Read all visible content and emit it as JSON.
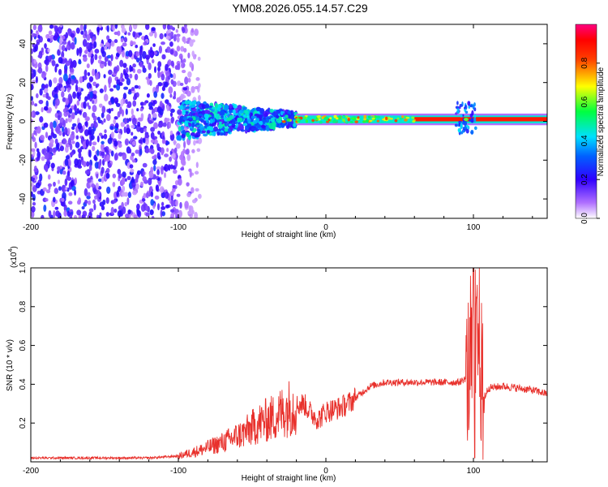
{
  "chart_data": [
    {
      "type": "heatmap",
      "title": "YM08.2026.055.14.57.C29",
      "xlabel": "Height of straight line (km)",
      "ylabel": "Frequency (Hz)",
      "xlim": [
        -200,
        150
      ],
      "ylim": [
        -50,
        50
      ],
      "x_ticks": [
        -200,
        -100,
        0,
        100
      ],
      "x_tick_labels": [
        "-200",
        "-100",
        "0",
        "100"
      ],
      "y_ticks": [
        -40,
        -20,
        0,
        20,
        40
      ],
      "y_tick_labels": [
        "-40",
        "-20",
        "0",
        "20",
        "40"
      ],
      "colorbar": {
        "label": "Normalized spectral amplitude",
        "range": [
          0,
          1
        ],
        "ticks": [
          0.0,
          0.2,
          0.4,
          0.6,
          0.8
        ],
        "tick_labels": [
          "0.0",
          "0.2",
          "0.4",
          "0.6",
          "0.8"
        ],
        "colors": [
          "#ffffff",
          "#7a00ff",
          "#0000ff",
          "#00ffff",
          "#00ff00",
          "#ffff00",
          "#ff0000",
          "#ff00aa"
        ]
      },
      "regions": [
        {
          "name": "noise",
          "x_range": [
            -200,
            -100
          ],
          "freq_spread": [
            -50,
            50
          ],
          "amplitude": 0.1
        },
        {
          "name": "onset",
          "x_range": [
            -100,
            -20
          ],
          "freq_spread": [
            -10,
            10
          ],
          "amplitude": 0.35
        },
        {
          "name": "carrier",
          "x_range": [
            -20,
            150
          ],
          "freq_center": 1,
          "amplitude": 0.9
        },
        {
          "name": "bump",
          "x_center": 95,
          "freq_spread": [
            -8,
            8
          ],
          "amplitude": 0.4
        }
      ]
    },
    {
      "type": "line",
      "xlabel": "Height of straight line (km)",
      "ylabel": "SNR (10 * v/v)",
      "multiplier_label": "(x10",
      "multiplier_exp": "4",
      "multiplier_close": ")",
      "xlim": [
        -200,
        150
      ],
      "ylim": [
        0,
        1.0
      ],
      "x_ticks": [
        -200,
        -100,
        0,
        100
      ],
      "x_tick_labels": [
        "-200",
        "-100",
        "0",
        "100"
      ],
      "y_ticks": [
        0.2,
        0.4,
        0.6,
        0.8,
        1.0
      ],
      "y_tick_labels": [
        "0.2",
        "0.4",
        "0.6",
        "0.8",
        "1.0"
      ],
      "color": "#e8312c",
      "series": [
        {
          "name": "SNR",
          "x": [
            -200,
            -150,
            -120,
            -100,
            -85,
            -70,
            -55,
            -45,
            -35,
            -25,
            -15,
            -10,
            -5,
            0,
            5,
            10,
            15,
            20,
            25,
            30,
            40,
            50,
            60,
            70,
            80,
            90,
            95,
            98,
            100,
            102,
            104,
            106,
            110,
            120,
            130,
            140,
            150
          ],
          "y": [
            0.02,
            0.02,
            0.02,
            0.03,
            0.06,
            0.1,
            0.15,
            0.2,
            0.23,
            0.28,
            0.3,
            0.25,
            0.22,
            0.26,
            0.27,
            0.28,
            0.3,
            0.33,
            0.36,
            0.39,
            0.41,
            0.41,
            0.41,
            0.41,
            0.41,
            0.41,
            0.43,
            0.5,
            0.55,
            0.6,
            0.65,
            0.3,
            0.38,
            0.39,
            0.38,
            0.37,
            0.35
          ]
        }
      ]
    }
  ]
}
